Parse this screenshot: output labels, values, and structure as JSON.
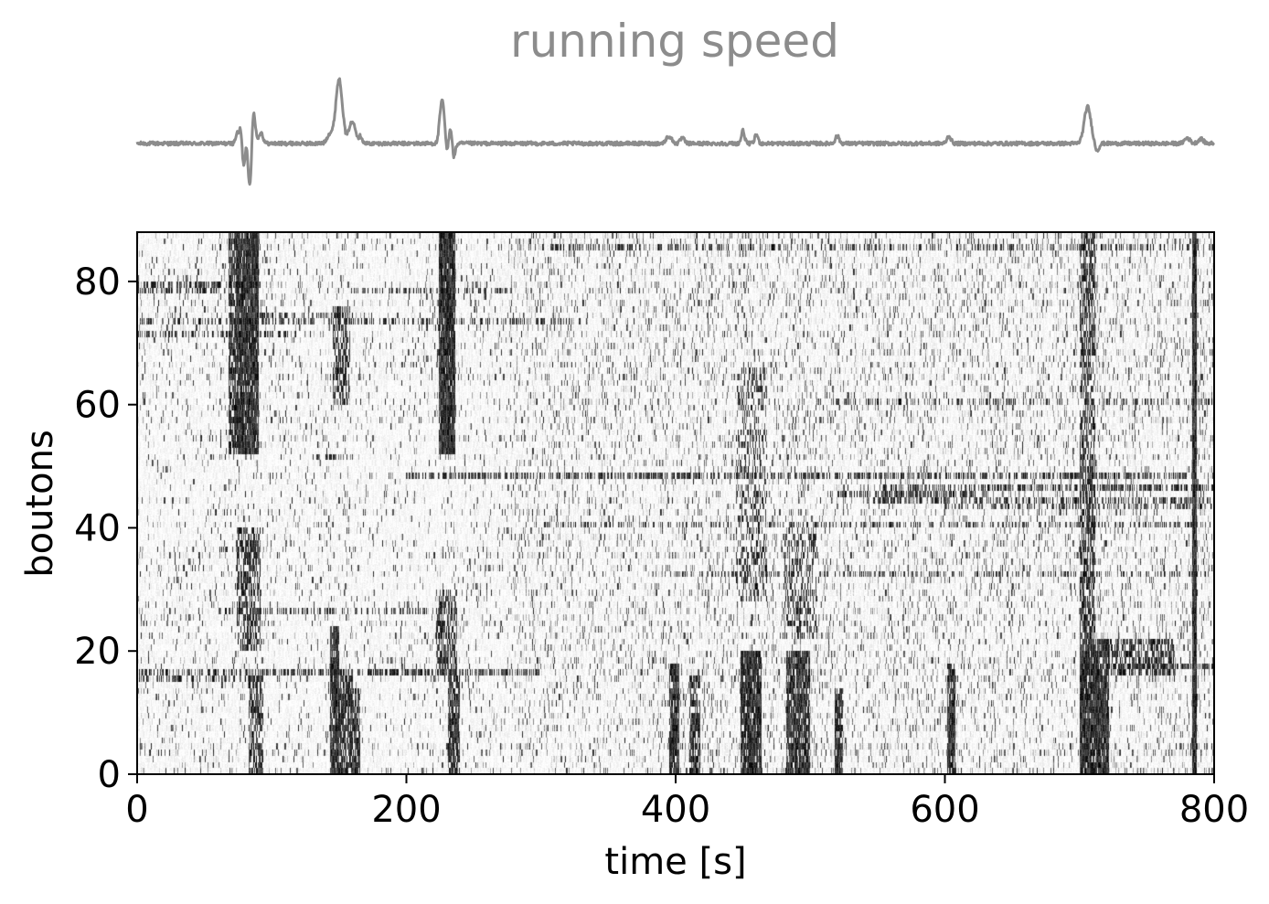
{
  "chart_data": [
    {
      "type": "line",
      "title": "running speed",
      "xlabel": "",
      "ylabel": "",
      "xlim": [
        0,
        800
      ],
      "axes_visible": false,
      "grid": false,
      "color": "#8c8c8c",
      "events": [
        {
          "t": 74,
          "amp": 10,
          "w": 1.0
        },
        {
          "t": 77,
          "amp": 25,
          "w": 1.2
        },
        {
          "t": 79,
          "amp": -30,
          "w": 1.5
        },
        {
          "t": 81,
          "amp": 12,
          "w": 1.0
        },
        {
          "t": 84,
          "amp": -62,
          "w": 1.3
        },
        {
          "t": 86,
          "amp": 45,
          "w": 1.5
        },
        {
          "t": 92,
          "amp": 12,
          "w": 1.5
        },
        {
          "t": 143,
          "amp": 10,
          "w": 2.0
        },
        {
          "t": 150,
          "amp": 70,
          "w": 2.5
        },
        {
          "t": 158,
          "amp": 14,
          "w": 1.5
        },
        {
          "t": 161,
          "amp": 20,
          "w": 1.8
        },
        {
          "t": 166,
          "amp": 8,
          "w": 1.2
        },
        {
          "t": 225,
          "amp": 15,
          "w": 1.2
        },
        {
          "t": 227,
          "amp": 42,
          "w": 1.5
        },
        {
          "t": 230,
          "amp": -12,
          "w": 1.0
        },
        {
          "t": 233,
          "amp": 20,
          "w": 1.2
        },
        {
          "t": 235,
          "amp": -18,
          "w": 1.2
        },
        {
          "t": 395,
          "amp": 8,
          "w": 2.0
        },
        {
          "t": 405,
          "amp": 6,
          "w": 1.5
        },
        {
          "t": 450,
          "amp": 14,
          "w": 1.2
        },
        {
          "t": 460,
          "amp": 10,
          "w": 1.2
        },
        {
          "t": 520,
          "amp": 8,
          "w": 1.5
        },
        {
          "t": 603,
          "amp": 8,
          "w": 1.5
        },
        {
          "t": 706,
          "amp": 40,
          "w": 2.5
        },
        {
          "t": 713,
          "amp": -8,
          "w": 1.5
        },
        {
          "t": 780,
          "amp": 6,
          "w": 2.0
        },
        {
          "t": 790,
          "amp": 5,
          "w": 2.0
        }
      ]
    },
    {
      "type": "heatmap",
      "title": "",
      "xlabel": "time [s]",
      "ylabel": "boutons",
      "xlim": [
        0,
        800
      ],
      "ylim": [
        0,
        88
      ],
      "xticks": [
        0,
        200,
        400,
        600,
        800
      ],
      "xtick_labels": [
        "0",
        "200",
        "400",
        "600",
        "800"
      ],
      "yticks": [
        0,
        20,
        40,
        60,
        80
      ],
      "ytick_labels": [
        "0",
        "20",
        "40",
        "60",
        "80"
      ],
      "n_boutons": 88,
      "colormap": "gray_r",
      "grid": false,
      "population_events": [
        {
          "t0": 68,
          "t1": 74,
          "b0": 52,
          "b1": 88,
          "s": 0.75
        },
        {
          "t0": 74,
          "t1": 90,
          "b0": 52,
          "b1": 88,
          "s": 0.95
        },
        {
          "t0": 74,
          "t1": 92,
          "b0": 20,
          "b1": 40,
          "s": 0.55
        },
        {
          "t0": 83,
          "t1": 94,
          "b0": 0,
          "b1": 16,
          "s": 0.6
        },
        {
          "t0": 143,
          "t1": 150,
          "b0": 0,
          "b1": 24,
          "s": 0.9
        },
        {
          "t0": 150,
          "t1": 160,
          "b0": 0,
          "b1": 16,
          "s": 0.8
        },
        {
          "t0": 160,
          "t1": 166,
          "b0": 0,
          "b1": 14,
          "s": 0.8
        },
        {
          "t0": 145,
          "t1": 158,
          "b0": 60,
          "b1": 76,
          "s": 0.5
        },
        {
          "t0": 224,
          "t1": 236,
          "b0": 52,
          "b1": 88,
          "s": 0.95
        },
        {
          "t0": 222,
          "t1": 238,
          "b0": 16,
          "b1": 30,
          "s": 0.6
        },
        {
          "t0": 231,
          "t1": 240,
          "b0": 0,
          "b1": 16,
          "s": 0.8
        },
        {
          "t0": 395,
          "t1": 403,
          "b0": 0,
          "b1": 18,
          "s": 0.9
        },
        {
          "t0": 410,
          "t1": 418,
          "b0": 0,
          "b1": 16,
          "s": 0.7
        },
        {
          "t0": 448,
          "t1": 464,
          "b0": 0,
          "b1": 20,
          "s": 0.9
        },
        {
          "t0": 445,
          "t1": 468,
          "b0": 28,
          "b1": 66,
          "s": 0.3
        },
        {
          "t0": 482,
          "t1": 500,
          "b0": 0,
          "b1": 20,
          "s": 0.85
        },
        {
          "t0": 480,
          "t1": 505,
          "b0": 22,
          "b1": 40,
          "s": 0.3
        },
        {
          "t0": 518,
          "t1": 524,
          "b0": 0,
          "b1": 14,
          "s": 0.85
        },
        {
          "t0": 602,
          "t1": 608,
          "b0": 0,
          "b1": 18,
          "s": 0.85
        },
        {
          "t0": 700,
          "t1": 722,
          "b0": 0,
          "b1": 22,
          "s": 0.95
        },
        {
          "t0": 700,
          "t1": 712,
          "b0": 22,
          "b1": 88,
          "s": 0.55
        },
        {
          "t0": 720,
          "t1": 770,
          "b0": 16,
          "b1": 22,
          "s": 0.55
        },
        {
          "t0": 784,
          "t1": 787,
          "b0": 0,
          "b1": 88,
          "s": 1.0
        }
      ],
      "persistent_rows": [
        {
          "b": 48,
          "t0": 200,
          "t1": 780,
          "s": 0.5
        },
        {
          "b": 46,
          "t0": 550,
          "t1": 800,
          "s": 0.55
        },
        {
          "b": 45,
          "t0": 520,
          "t1": 640,
          "s": 0.6
        },
        {
          "b": 44,
          "t0": 540,
          "t1": 800,
          "s": 0.45
        },
        {
          "b": 43,
          "t0": 600,
          "t1": 800,
          "s": 0.35
        },
        {
          "b": 16,
          "t0": 0,
          "t1": 300,
          "s": 0.55
        },
        {
          "b": 15,
          "t0": 0,
          "t1": 90,
          "s": 0.45
        },
        {
          "b": 79,
          "t0": 0,
          "t1": 90,
          "s": 0.45
        },
        {
          "b": 78,
          "t0": 0,
          "t1": 60,
          "s": 0.4
        },
        {
          "b": 74,
          "t0": 90,
          "t1": 160,
          "s": 0.45
        },
        {
          "b": 78,
          "t0": 160,
          "t1": 280,
          "s": 0.35
        },
        {
          "b": 73,
          "t0": 0,
          "t1": 330,
          "s": 0.35
        },
        {
          "b": 71,
          "t0": 0,
          "t1": 120,
          "s": 0.35
        },
        {
          "b": 51,
          "t0": 130,
          "t1": 150,
          "s": 0.5
        },
        {
          "b": 26,
          "t0": 60,
          "t1": 230,
          "s": 0.3
        },
        {
          "b": 36,
          "t0": 60,
          "t1": 90,
          "s": 0.35
        },
        {
          "b": 85,
          "t0": 300,
          "t1": 800,
          "s": 0.3
        },
        {
          "b": 40,
          "t0": 300,
          "t1": 800,
          "s": 0.28
        },
        {
          "b": 32,
          "t0": 400,
          "t1": 800,
          "s": 0.28
        },
        {
          "b": 60,
          "t0": 500,
          "t1": 800,
          "s": 0.28
        },
        {
          "b": 17,
          "t0": 720,
          "t1": 800,
          "s": 0.5
        }
      ]
    }
  ]
}
